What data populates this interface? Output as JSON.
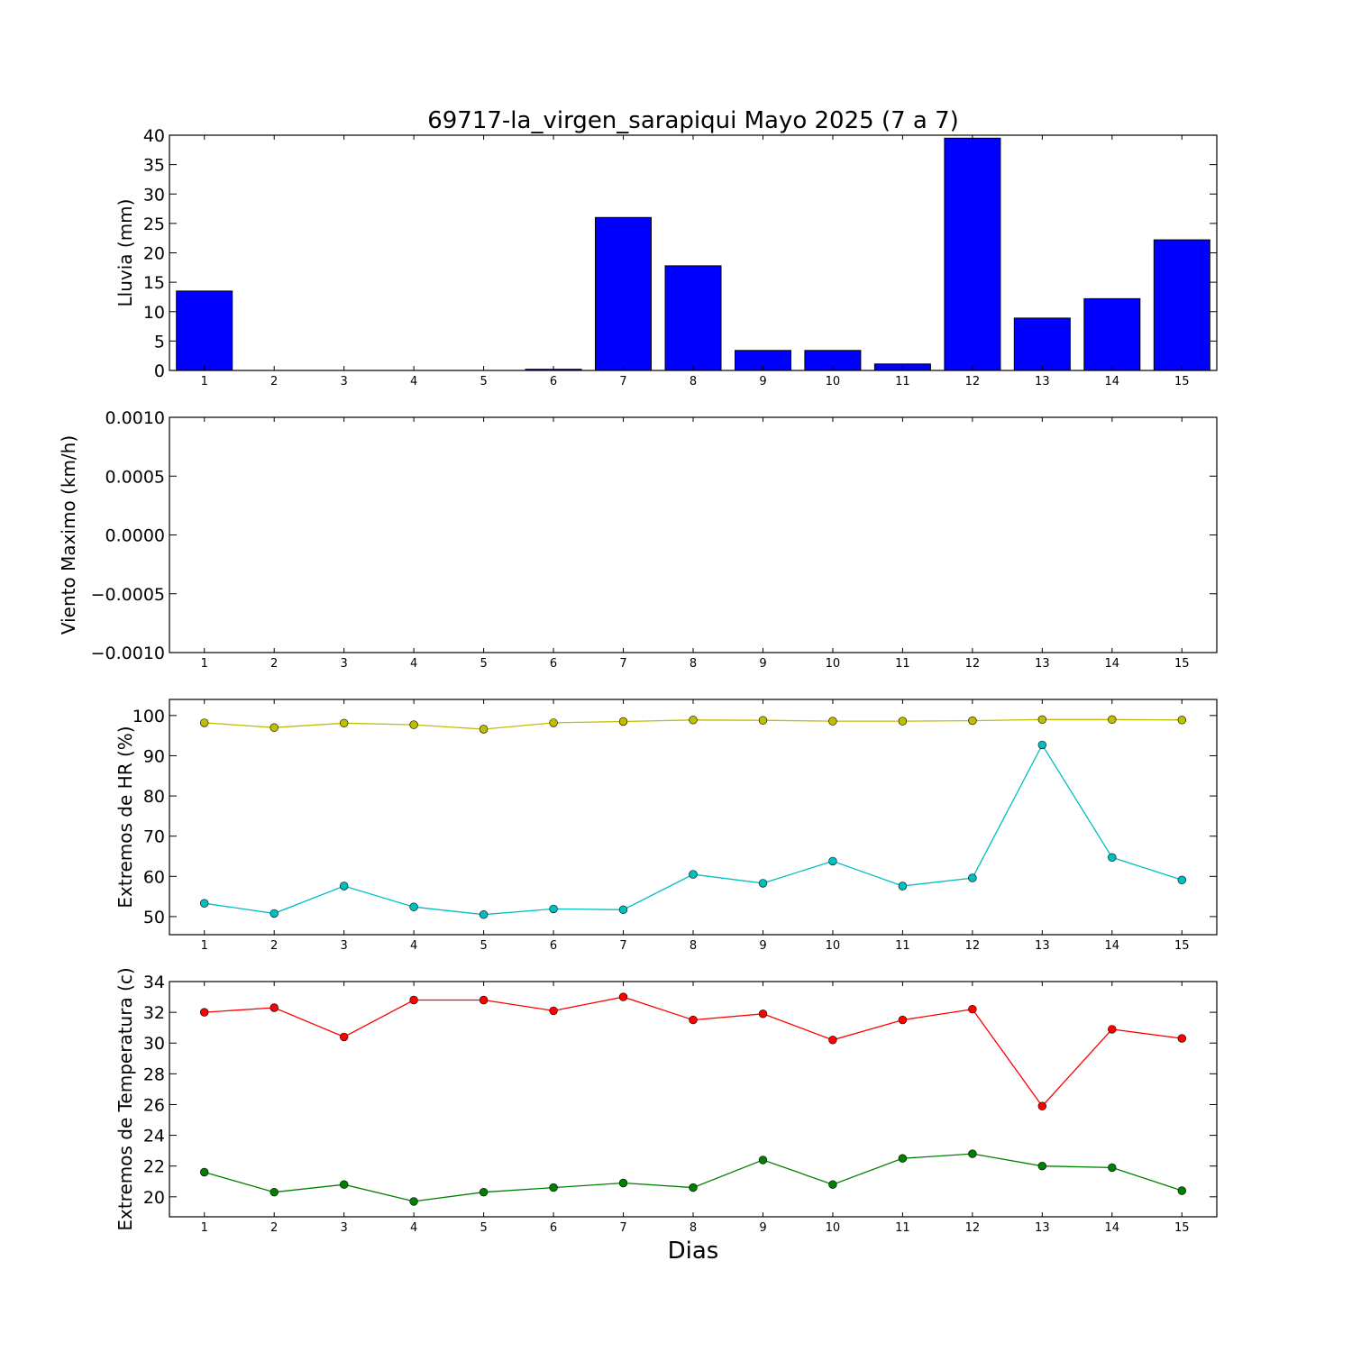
{
  "title": "69717-la_virgen_sarapiqui Mayo 2025  (7 a 7)",
  "xlabel": "Dias",
  "colors": {
    "bar": "#0000ff",
    "hr_max": "#bfbf00",
    "hr_min": "#00bfbf",
    "temp_max": "#ff0000",
    "temp_min": "#008000"
  },
  "chart_data": [
    {
      "type": "bar",
      "ylabel": "Lluvia (mm)",
      "categories": [
        1,
        2,
        3,
        4,
        5,
        6,
        7,
        8,
        9,
        10,
        11,
        12,
        13,
        14,
        15
      ],
      "values": [
        13.5,
        0,
        0,
        0,
        0,
        0.2,
        26.0,
        17.8,
        3.4,
        3.4,
        1.1,
        39.5,
        8.9,
        12.2,
        22.2
      ],
      "ylim": [
        0,
        40
      ],
      "yticks": [
        0,
        5,
        10,
        15,
        20,
        25,
        30,
        35,
        40
      ],
      "ytick_labels": [
        "0",
        "5",
        "10",
        "15",
        "20",
        "25",
        "30",
        "35",
        "40"
      ]
    },
    {
      "type": "line",
      "ylabel": "Viento Maximo (km/h)",
      "x": [
        1,
        2,
        3,
        4,
        5,
        6,
        7,
        8,
        9,
        10,
        11,
        12,
        13,
        14,
        15
      ],
      "series": [],
      "ylim": [
        -0.001,
        0.001
      ],
      "yticks": [
        -0.001,
        -0.0005,
        0,
        0.0005,
        0.001
      ],
      "ytick_labels": [
        "−0.0010",
        "−0.0005",
        "0.0000",
        "0.0005",
        "0.0010"
      ]
    },
    {
      "type": "line",
      "ylabel": "Extremos de HR (%)",
      "x": [
        1,
        2,
        3,
        4,
        5,
        6,
        7,
        8,
        9,
        10,
        11,
        12,
        13,
        14,
        15
      ],
      "series": [
        {
          "color_key": "hr_max",
          "values": [
            98.2,
            97.0,
            98.1,
            97.7,
            96.6,
            98.2,
            98.5,
            98.9,
            98.8,
            98.6,
            98.6,
            98.7,
            99.0,
            99.0,
            98.9
          ]
        },
        {
          "color_key": "hr_min",
          "values": [
            53.3,
            50.8,
            57.6,
            52.4,
            50.5,
            51.9,
            51.7,
            60.5,
            58.3,
            63.8,
            57.6,
            59.6,
            92.7,
            64.7,
            59.1
          ]
        }
      ],
      "ylim": [
        45.5,
        104
      ],
      "yticks": [
        50,
        60,
        70,
        80,
        90,
        100
      ],
      "ytick_labels": [
        "50",
        "60",
        "70",
        "80",
        "90",
        "100"
      ]
    },
    {
      "type": "line",
      "ylabel": "Extremos de Temperatura (c)",
      "x": [
        1,
        2,
        3,
        4,
        5,
        6,
        7,
        8,
        9,
        10,
        11,
        12,
        13,
        14,
        15
      ],
      "series": [
        {
          "color_key": "temp_max",
          "values": [
            32.0,
            32.3,
            30.4,
            32.8,
            32.8,
            32.1,
            33.0,
            31.5,
            31.9,
            30.2,
            31.5,
            32.2,
            25.9,
            30.9,
            30.3
          ]
        },
        {
          "color_key": "temp_min",
          "values": [
            21.6,
            20.3,
            20.8,
            19.7,
            20.3,
            20.6,
            20.9,
            20.6,
            22.4,
            20.8,
            22.5,
            22.8,
            22.0,
            21.9,
            20.4
          ]
        }
      ],
      "ylim": [
        18.7,
        34
      ],
      "yticks": [
        20,
        22,
        24,
        26,
        28,
        30,
        32,
        34
      ],
      "ytick_labels": [
        "20",
        "22",
        "24",
        "26",
        "28",
        "30",
        "32",
        "34"
      ]
    }
  ]
}
